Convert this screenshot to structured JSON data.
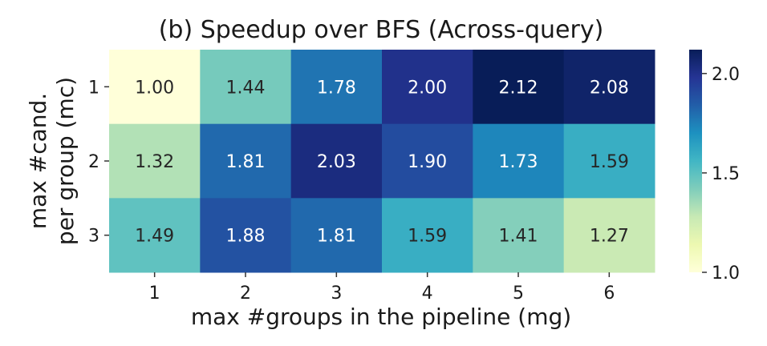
{
  "chart_data": {
    "type": "heatmap",
    "title": "(b) Speedup over BFS (Across-query)",
    "xlabel": "max #groups in the pipeline (mg)",
    "ylabel_lines": [
      "max #cand.",
      "per group (mc)"
    ],
    "x_categories": [
      "1",
      "2",
      "3",
      "4",
      "5",
      "6"
    ],
    "y_categories": [
      "1",
      "2",
      "3"
    ],
    "values": [
      [
        1.0,
        1.44,
        1.78,
        2.0,
        2.12,
        2.08
      ],
      [
        1.32,
        1.81,
        2.03,
        1.9,
        1.73,
        1.59
      ],
      [
        1.49,
        1.88,
        1.81,
        1.59,
        1.41,
        1.27
      ]
    ],
    "value_labels": [
      [
        "1.00",
        "1.44",
        "1.78",
        "2.00",
        "2.12",
        "2.08"
      ],
      [
        "1.32",
        "1.81",
        "2.03",
        "1.90",
        "1.73",
        "1.59"
      ],
      [
        "1.49",
        "1.88",
        "1.81",
        "1.59",
        "1.41",
        "1.27"
      ]
    ],
    "colormap": "YlGnBu",
    "vmin": 1.0,
    "vmax": 2.12,
    "colorbar_ticks": [
      {
        "value": 1.0,
        "label": "1.0"
      },
      {
        "value": 1.5,
        "label": "1.5"
      },
      {
        "value": 2.0,
        "label": "2.0"
      }
    ],
    "grid": false
  }
}
